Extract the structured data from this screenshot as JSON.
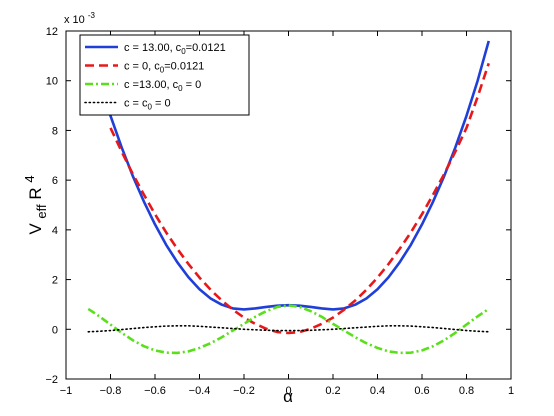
{
  "chart_data": {
    "type": "line",
    "title": "",
    "xlabel": "α",
    "ylabel": {
      "base": "V",
      "sub": "eff",
      "rest": " R",
      "sup": "4"
    },
    "y_scale_label": "x 10",
    "y_scale_exponent": "-3",
    "xlim": [
      -1,
      1
    ],
    "ylim": [
      -2,
      12
    ],
    "x_ticks": [
      -1,
      -0.8,
      -0.6,
      -0.4,
      -0.2,
      0,
      0.2,
      0.4,
      0.6,
      0.8,
      1
    ],
    "x_tick_labels": [
      "−1",
      "−0.8",
      "−0.6",
      "−0.4",
      "−0.2",
      "0",
      "0.2",
      "0.4",
      "0.6",
      "0.8",
      "1"
    ],
    "y_ticks": [
      -2,
      0,
      2,
      4,
      6,
      8,
      10,
      12
    ],
    "y_tick_labels": [
      "−2",
      "0",
      "2",
      "4",
      "6",
      "8",
      "10",
      "12"
    ],
    "grid": false,
    "legend_position": "top-left",
    "series": [
      {
        "name": "c = 13.00, c0=0.0121",
        "label_parts": [
          "c = 13.00, c",
          "0",
          "=0.0121"
        ],
        "color": "#1f3fd8",
        "style": "solid",
        "x": [
          -0.9,
          -0.85,
          -0.8,
          -0.75,
          -0.7,
          -0.65,
          -0.6,
          -0.55,
          -0.5,
          -0.45,
          -0.4,
          -0.35,
          -0.3,
          -0.25,
          -0.2,
          -0.15,
          -0.1,
          -0.05,
          0,
          0.05,
          0.1,
          0.15,
          0.2,
          0.25,
          0.3,
          0.35,
          0.4,
          0.45,
          0.5,
          0.55,
          0.6,
          0.65,
          0.7,
          0.75,
          0.8,
          0.85,
          0.9
        ],
        "y": [
          11.6,
          10.0,
          8.59,
          7.32,
          6.17,
          5.14,
          4.22,
          3.4,
          2.7,
          2.1,
          1.61,
          1.24,
          0.99,
          0.84,
          0.8,
          0.84,
          0.9,
          0.95,
          0.97,
          0.95,
          0.9,
          0.84,
          0.8,
          0.84,
          0.99,
          1.24,
          1.61,
          2.1,
          2.7,
          3.4,
          4.22,
          5.14,
          6.17,
          7.32,
          8.59,
          10.0,
          11.6
        ]
      },
      {
        "name": "c = 0, c0=0.0121",
        "label_parts": [
          "c = 0, c",
          "0",
          "=0.0121"
        ],
        "color": "#e8181a",
        "style": "dashed",
        "x": [
          -0.8,
          -0.75,
          -0.7,
          -0.65,
          -0.6,
          -0.55,
          -0.5,
          -0.45,
          -0.4,
          -0.35,
          -0.3,
          -0.25,
          -0.2,
          -0.15,
          -0.1,
          -0.05,
          0,
          0.05,
          0.1,
          0.15,
          0.2,
          0.25,
          0.3,
          0.35,
          0.4,
          0.45,
          0.5,
          0.55,
          0.6,
          0.65,
          0.7,
          0.75,
          0.8,
          0.85,
          0.9
        ],
        "y": [
          8.1,
          7.15,
          6.25,
          5.42,
          4.63,
          3.9,
          3.24,
          2.63,
          2.08,
          1.59,
          1.16,
          0.79,
          0.47,
          0.22,
          0.02,
          -0.11,
          -0.15,
          -0.11,
          0.02,
          0.22,
          0.47,
          0.79,
          1.16,
          1.59,
          2.08,
          2.63,
          3.24,
          3.9,
          4.63,
          5.42,
          6.25,
          7.15,
          8.1,
          9.35,
          10.7
        ]
      },
      {
        "name": "c =13.00, c0 = 0",
        "label_parts": [
          "c =13.00, c",
          "0",
          " = 0"
        ],
        "color": "#59e01a",
        "style": "dashdot",
        "x": [
          -0.9,
          -0.85,
          -0.8,
          -0.75,
          -0.7,
          -0.65,
          -0.6,
          -0.55,
          -0.5,
          -0.45,
          -0.4,
          -0.35,
          -0.3,
          -0.25,
          -0.2,
          -0.15,
          -0.1,
          -0.05,
          0,
          0.05,
          0.1,
          0.15,
          0.2,
          0.25,
          0.3,
          0.35,
          0.4,
          0.45,
          0.5,
          0.55,
          0.6,
          0.65,
          0.7,
          0.75,
          0.8,
          0.85,
          0.9
        ],
        "y": [
          0.82,
          0.52,
          0.19,
          -0.14,
          -0.44,
          -0.68,
          -0.85,
          -0.94,
          -0.95,
          -0.89,
          -0.75,
          -0.56,
          -0.32,
          -0.05,
          0.22,
          0.5,
          0.73,
          0.9,
          0.96,
          0.9,
          0.73,
          0.5,
          0.22,
          -0.05,
          -0.32,
          -0.56,
          -0.75,
          -0.89,
          -0.95,
          -0.94,
          -0.85,
          -0.68,
          -0.44,
          -0.14,
          0.19,
          0.52,
          0.82
        ]
      },
      {
        "name": "c = c0 = 0",
        "label_parts": [
          "c = c",
          "0",
          " = 0"
        ],
        "color": "#000000",
        "style": "dotted",
        "x": [
          -0.9,
          -0.85,
          -0.8,
          -0.75,
          -0.7,
          -0.65,
          -0.6,
          -0.55,
          -0.5,
          -0.45,
          -0.4,
          -0.35,
          -0.3,
          -0.25,
          -0.2,
          -0.15,
          -0.1,
          -0.05,
          0,
          0.05,
          0.1,
          0.15,
          0.2,
          0.25,
          0.3,
          0.35,
          0.4,
          0.45,
          0.5,
          0.55,
          0.6,
          0.65,
          0.7,
          0.75,
          0.8,
          0.85,
          0.9
        ],
        "y": [
          -0.1,
          -0.08,
          -0.05,
          -0.01,
          0.03,
          0.07,
          0.1,
          0.13,
          0.14,
          0.14,
          0.12,
          0.09,
          0.06,
          0.03,
          0.0,
          -0.02,
          -0.04,
          -0.05,
          -0.05,
          -0.05,
          -0.04,
          -0.02,
          0.0,
          0.03,
          0.06,
          0.09,
          0.12,
          0.14,
          0.14,
          0.13,
          0.1,
          0.07,
          0.03,
          -0.01,
          -0.05,
          -0.08,
          -0.1
        ]
      }
    ]
  }
}
